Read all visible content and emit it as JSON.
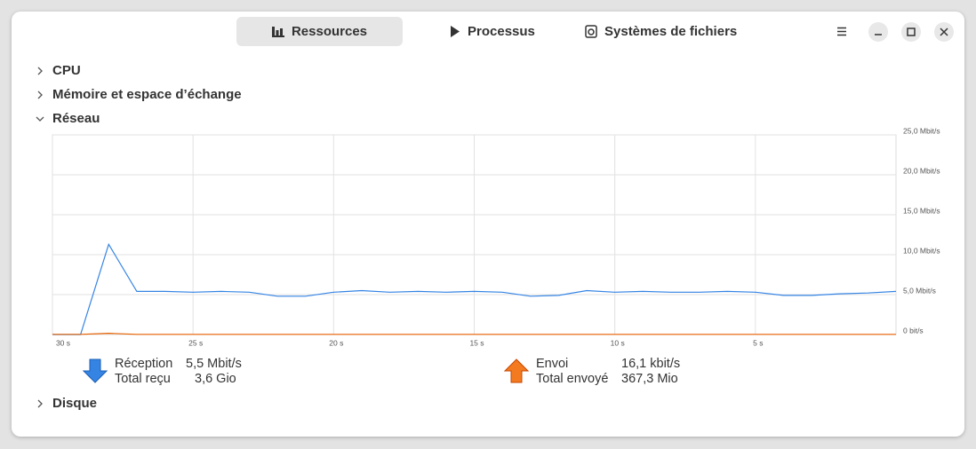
{
  "tabs": [
    "Ressources",
    "Processus",
    "Systèmes de fichiers"
  ],
  "sections": [
    "CPU",
    "Mémoire et espace d’échange",
    "Réseau",
    "Disque"
  ],
  "chart_data": {
    "type": "line",
    "x": [
      30,
      29,
      28,
      27,
      26,
      25,
      24,
      23,
      22,
      21,
      20,
      19,
      18,
      17,
      16,
      15,
      14,
      13,
      12,
      11,
      10,
      9,
      8,
      7,
      6,
      5,
      4,
      3,
      2,
      1,
      0
    ],
    "xlim": [
      30,
      0
    ],
    "xticks": [
      {
        "value": 30,
        "label": "30 s"
      },
      {
        "value": 25,
        "label": "25 s"
      },
      {
        "value": 20,
        "label": "20 s"
      },
      {
        "value": 15,
        "label": "15 s"
      },
      {
        "value": 10,
        "label": "10 s"
      },
      {
        "value": 5,
        "label": "5 s"
      }
    ],
    "ylim": [
      0,
      25
    ],
    "yticks": [
      {
        "value": 0,
        "label": "0 bit/s"
      },
      {
        "value": 5,
        "label": "5,0 Mbit/s"
      },
      {
        "value": 10,
        "label": "10,0 Mbit/s"
      },
      {
        "value": 15,
        "label": "15,0 Mbit/s"
      },
      {
        "value": 20,
        "label": "20,0 Mbit/s"
      },
      {
        "value": 25,
        "label": "25,0 Mbit/s"
      }
    ],
    "grid": true,
    "series": [
      {
        "name": "Réception",
        "color": "#3584e4",
        "values": [
          0,
          0,
          11.3,
          5.4,
          5.4,
          5.3,
          5.4,
          5.3,
          4.8,
          4.8,
          5.3,
          5.5,
          5.3,
          5.4,
          5.3,
          5.4,
          5.3,
          4.8,
          4.9,
          5.5,
          5.3,
          5.4,
          5.3,
          5.3,
          5.4,
          5.3,
          4.9,
          4.9,
          5.1,
          5.2,
          5.4
        ]
      },
      {
        "name": "Envoi",
        "color": "#e66100",
        "values": [
          0.02,
          0.02,
          0.15,
          0.02,
          0.02,
          0.02,
          0.02,
          0.02,
          0.02,
          0.02,
          0.02,
          0.02,
          0.02,
          0.02,
          0.02,
          0.02,
          0.02,
          0.02,
          0.02,
          0.02,
          0.02,
          0.02,
          0.02,
          0.02,
          0.02,
          0.02,
          0.02,
          0.02,
          0.02,
          0.02,
          0.02
        ]
      }
    ]
  },
  "network_stats": [
    {
      "rate": "5,5 Mbit/s",
      "total_label": "Total reçu",
      "total": "3,6 Gio"
    },
    {
      "rate": "16,1 kbit/s",
      "total_label": "Total envoyé",
      "total": "367,3 Mio"
    }
  ]
}
